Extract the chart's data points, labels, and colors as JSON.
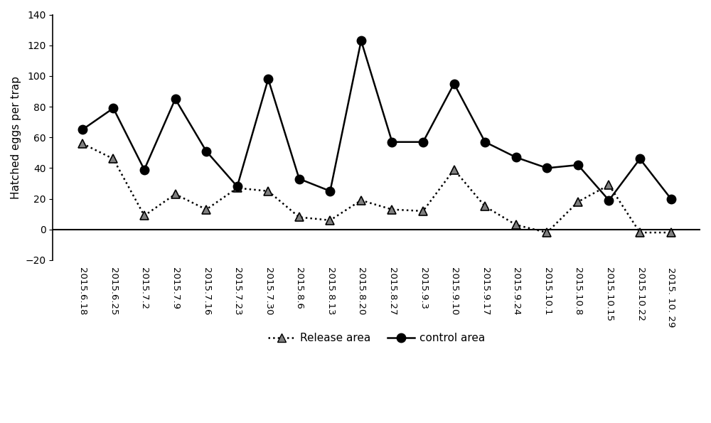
{
  "x_labels": [
    "2015.6.18",
    "2015.6.25",
    "2015.7.2",
    "2015.7.9",
    "2015.7.16",
    "2015.7.23",
    "2015.7.30",
    "2015.8.6",
    "2015.8.13",
    "2015.8.20",
    "2015.8.27",
    "2015.9.3",
    "2015.9.10",
    "2015.9.17",
    "2015.9.24",
    "2015.10.1",
    "2015.10.8",
    "2015.10.15",
    "2015.10.22",
    "2015. 10. 29"
  ],
  "release_area": [
    56,
    46,
    9,
    23,
    13,
    27,
    25,
    8,
    6,
    19,
    13,
    12,
    39,
    15,
    3,
    -2,
    18,
    29,
    -2,
    -2
  ],
  "control_area": [
    65,
    79,
    39,
    85,
    51,
    28,
    98,
    33,
    25,
    123,
    57,
    57,
    95,
    57,
    47,
    40,
    42,
    19,
    46,
    20
  ],
  "ylabel": "Hatched eggs per trap",
  "ylim": [
    -20,
    140
  ],
  "yticks": [
    -20,
    0,
    20,
    40,
    60,
    80,
    100,
    120,
    140
  ],
  "legend_release": "Release area",
  "legend_control": "control area",
  "bg_color": "#ffffff",
  "release_color": "#808080",
  "control_color": "#000000"
}
